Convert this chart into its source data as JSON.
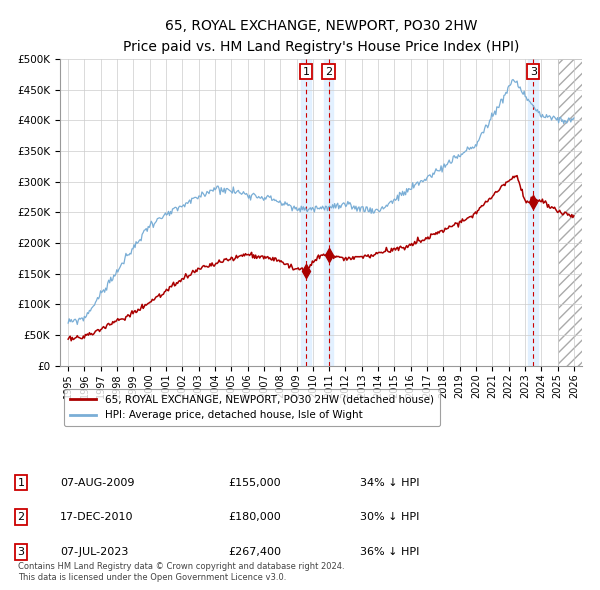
{
  "title": "65, ROYAL EXCHANGE, NEWPORT, PO30 2HW",
  "subtitle": "Price paid vs. HM Land Registry's House Price Index (HPI)",
  "footer_line1": "Contains HM Land Registry data © Crown copyright and database right 2024.",
  "footer_line2": "This data is licensed under the Open Government Licence v3.0.",
  "legend_label_red": "65, ROYAL EXCHANGE, NEWPORT, PO30 2HW (detached house)",
  "legend_label_blue": "HPI: Average price, detached house, Isle of Wight",
  "table": [
    {
      "num": "1",
      "date": "07-AUG-2009",
      "price": "£155,000",
      "pct": "34% ↓ HPI"
    },
    {
      "num": "2",
      "date": "17-DEC-2010",
      "price": "£180,000",
      "pct": "30% ↓ HPI"
    },
    {
      "num": "3",
      "date": "07-JUL-2023",
      "price": "£267,400",
      "pct": "36% ↓ HPI"
    }
  ],
  "sale_dates": [
    2009.6,
    2010.96,
    2023.51
  ],
  "sale_prices": [
    155000,
    180000,
    267400
  ],
  "sale_labels": [
    "1",
    "2",
    "3"
  ],
  "color_red": "#aa0000",
  "color_blue": "#7aaed6",
  "color_vline": "#cc0000",
  "color_shading": "#ddeeff",
  "hatch_start": 2025.0,
  "ylim": [
    0,
    500000
  ],
  "yticks": [
    0,
    50000,
    100000,
    150000,
    200000,
    250000,
    300000,
    350000,
    400000,
    450000,
    500000
  ],
  "xlim_left": 1994.5,
  "xlim_right": 2026.5,
  "xticks": [
    1995,
    1996,
    1997,
    1998,
    1999,
    2000,
    2001,
    2002,
    2003,
    2004,
    2005,
    2006,
    2007,
    2008,
    2009,
    2010,
    2011,
    2012,
    2013,
    2014,
    2015,
    2016,
    2017,
    2018,
    2019,
    2020,
    2021,
    2022,
    2023,
    2024,
    2025,
    2026
  ],
  "background_color": "#ffffff",
  "grid_color": "#cccccc",
  "title_fontsize": 10,
  "subtitle_fontsize": 8.5
}
